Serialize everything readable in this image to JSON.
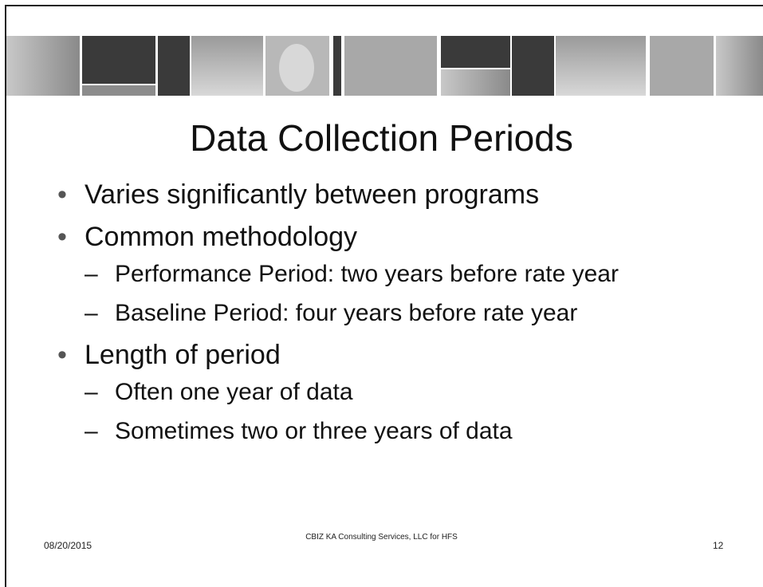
{
  "slide": {
    "title": "Data Collection Periods",
    "bullets": [
      {
        "text": "Varies significantly between programs",
        "subitems": []
      },
      {
        "text": "Common methodology",
        "subitems": [
          "Performance Period: two years before rate year",
          "Baseline Period: four years before rate year"
        ]
      },
      {
        "text": "Length of period",
        "subitems": [
          "Often one year of data",
          "Sometimes two or three years of data"
        ]
      }
    ],
    "footer": {
      "date": "08/20/2015",
      "organization": "CBIZ KA Consulting Services, LLC for HFS",
      "page_number": "12"
    }
  }
}
